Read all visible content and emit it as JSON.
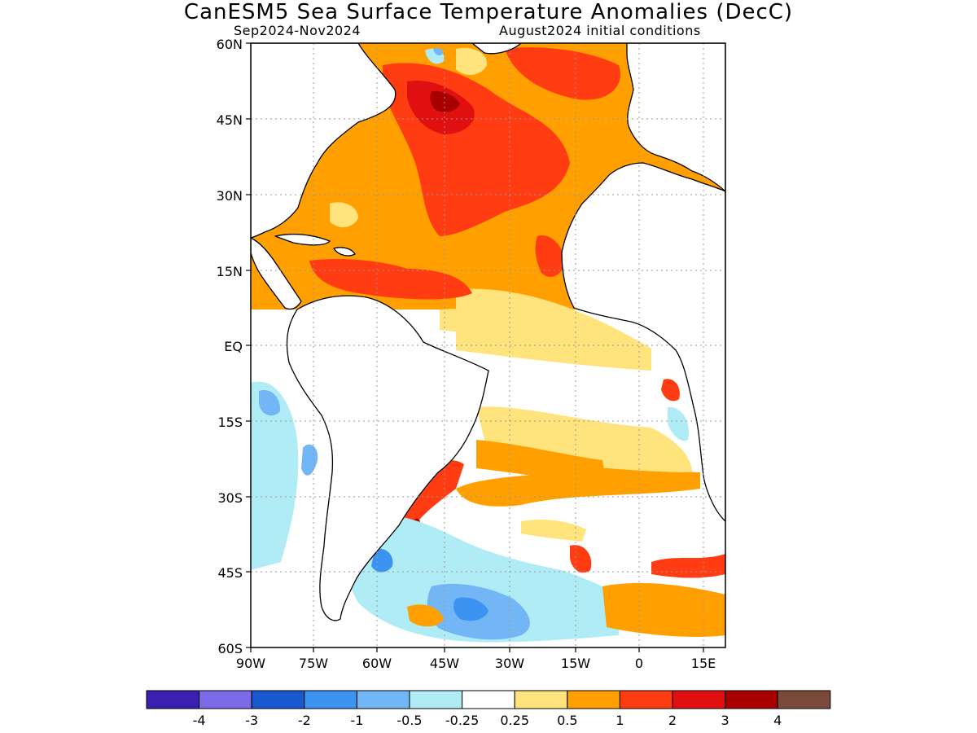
{
  "title": "CanESM5 Sea Surface Temperature Anomalies (DecC)",
  "subtitle_left": "Sep2024-Nov2024",
  "subtitle_right": "August2024 initial conditions",
  "map": {
    "lat_labels": [
      "60N",
      "45N",
      "30N",
      "15N",
      "EQ",
      "15S",
      "30S",
      "45S",
      "60S"
    ],
    "lon_labels": [
      "90W",
      "75W",
      "60W",
      "45W",
      "30W",
      "15W",
      "0",
      "15E"
    ]
  },
  "colorbar": {
    "colors": [
      "#3a1fb0",
      "#7d6ae8",
      "#1859d0",
      "#3d93f2",
      "#72b6f6",
      "#b0ecf6",
      "#ffffff",
      "#ffe47e",
      "#ffa000",
      "#ff3c12",
      "#e01010",
      "#a80000",
      "#7a4b3a"
    ],
    "tick_labels": [
      "-4",
      "-3",
      "-2",
      "-1",
      "-0.5",
      "-0.25",
      "0.25",
      "0.5",
      "1",
      "2",
      "3",
      "4"
    ]
  },
  "colors": {
    "land": "#ffffff",
    "ocean_base": "#ffa000",
    "warm": "#ff3c12",
    "hot": "#e01010",
    "hottest": "#a80000",
    "mild": "#ffe47e",
    "neutral": "#ffffff",
    "cool": "#b0ecf6",
    "cold": "#72b6f6",
    "colder": "#3d93f2"
  }
}
